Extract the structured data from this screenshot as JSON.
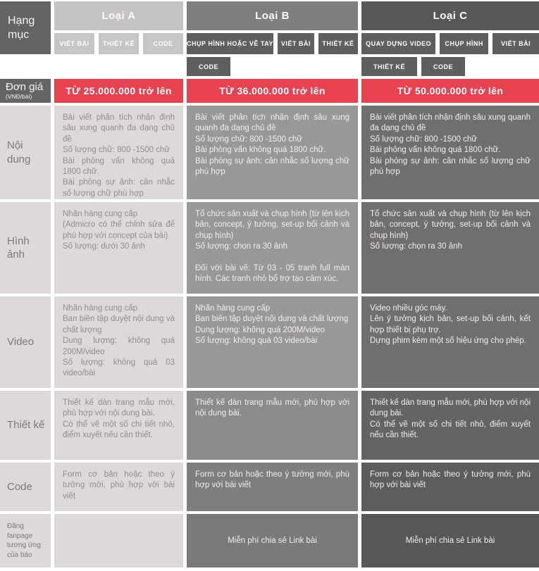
{
  "colors": {
    "accent_red": "#e8414f",
    "dark_header_gray": "#646464",
    "column_a_gray": "#c4c4c4",
    "column_b_gray": "#7f7f7f",
    "column_c_gray": "#585858",
    "light_cell_gray": "#dbdad8"
  },
  "corner": {
    "label": "Hạng mục"
  },
  "columns": [
    {
      "name": "Loại A",
      "tags_row1": [
        "VIẾT BÀI",
        "THIẾT KẾ",
        "CODE"
      ],
      "tags_row2": []
    },
    {
      "name": "Loại B",
      "tags_row1": [
        "CHỤP HÌNH HOẶC VẼ TAY",
        "VIẾT BÀI",
        "THIẾT KẾ"
      ],
      "tags_row2": [
        "CODE"
      ]
    },
    {
      "name": "Loại C",
      "tags_row1": [
        "QUAY DỰNG VIDEO",
        "CHỤP HÌNH",
        "VIẾT BÀI"
      ],
      "tags_row2": [
        "THIẾT KẾ",
        "CODE"
      ]
    }
  ],
  "price": {
    "label": "Đơn giá",
    "unit": "(VNĐ/bài)",
    "values": [
      "TỪ 25.000.000 trở lên",
      "TỪ 36.000.000 trở lên",
      "TỪ 50.000.000 trở lên"
    ]
  },
  "rows": [
    {
      "label": "Nội dung",
      "cells": [
        "Bài viết phân tích nhận định sâu xung quanh đa dạng chủ đề\nSố lượng chữ: 800 -1500 chữ\nBài phỏng vấn không quá 1800 chữ.\nBài phỏng sự ảnh: cân nhắc số lượng chữ phù hợp",
        "Bài viết phân tích nhận định sâu xung quanh đa dạng chủ đề\nSố lượng chữ: 800 -1500 chữ\nBài phỏng vấn không quá 1800 chữ.\nBài phỏng sự ảnh: cân nhắc số lượng chữ phù hợp",
        "Bài viết phân tích nhận định sâu xung quanh đa dạng chủ đề\nSố lượng chữ: 800 -1500 chữ\nBài phỏng vấn không quá 1800 chữ.\nBài phỏng sự ảnh: cân nhắc số lượng chữ phù hợp"
      ]
    },
    {
      "label": "Hình ảnh",
      "cells": [
        "Nhãn hàng cung cấp\n(Admicro có thể chỉnh sửa để phù hợp với concept của bài)\nSố lượng: dưới 30 ảnh",
        "Tổ chức sản xuất và chụp hình (từ lên kịch bản, concept, ý tưởng, set-up bối cảnh và chụp hình)\nSố lượng: chọn ra 30 ảnh\n\nĐối với bài vẽ: Từ 03 - 05 tranh full màn hình. Các tranh nhỏ bổ trợ tạo cảm xúc.",
        "Tổ chức sản xuất và chụp hình (từ lên kịch bản, concept, ý tưởng, set-up bối cảnh và chụp hình)\nSố lượng: chọn ra 30 ảnh"
      ]
    },
    {
      "label": "Video",
      "cells": [
        "Nhãn hàng cung cấp\nBan biên tập duyệt nội dung và chất lượng\nDung lượng: không quá 200M/video\nSố lượng: không quá 03 video/bài",
        "Nhãn hàng cung cấp\nBan biên tập duyệt nội dung và chất lượng\nDung lượng: không quá 200M/video\nSố lượng: không quá 03 video/bài",
        "Video nhiều góc máy.\nLên ý tưởng kịch bản, set-up bối cảnh, kết hợp thiết bị phụ trợ.\nDựng phim kèm một số hiệu ứng cho phép."
      ]
    },
    {
      "label": "Thiết kế",
      "cells": [
        "Thiết kế dàn trang mẫu mới, phù hợp với nội dung bài.\nCó thể vẽ một số chi tiết nhỏ, điểm xuyết nếu cần thiết.",
        "Thiết kế dàn trang mẫu mới, phù hợp với nội dung bài.",
        "Thiết kế dàn trang mẫu mới, phù hợp với nội dung bài.\nCó thể vẽ một số chi tiết nhỏ, điểm xuyết nếu cần thiết."
      ]
    },
    {
      "label": "Code",
      "cells": [
        "Form cơ bản hoặc theo ý tưởng mới, phù hợp với bài viết",
        "Form cơ bản hoặc theo ý tưởng mới, phù hợp với bài viết",
        "Form cơ bản hoặc theo ý tưởng mới, phù hợp với bài viết"
      ]
    },
    {
      "label": "Đăng fanpage tương ứng của báo",
      "cells": [
        "",
        "Miễn phí chia sẻ Link bài",
        "Miễn phí chia sẻ Link bài"
      ]
    }
  ]
}
